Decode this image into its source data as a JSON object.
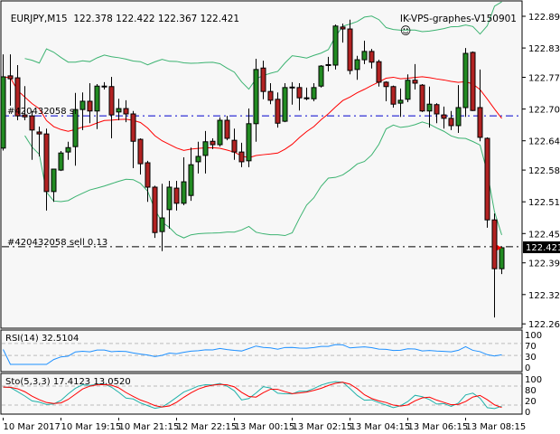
{
  "header": {
    "symbol": "EURJPY,M15",
    "ohlc": "122.378 122.422 122.367 122.421",
    "expert": "IK-VPS-graphes-V150901",
    "expert_icon": "smiley-face-icon"
  },
  "colors": {
    "background": "#f7f7f7",
    "bull": "#228b22",
    "bear": "#b22222",
    "bands": "#3cb371",
    "ma": "#ff0000",
    "rsi": "#1e90ff",
    "stoch_main": "#20b2aa",
    "stoch_signal": "#ff0000",
    "sl_line": "#0000cd",
    "order_line": "#000000"
  },
  "orders": {
    "sl_label": "#420432058 sl",
    "sl_price": 122.691,
    "sell_label": "#420432058 sell 0.13",
    "sell_price": 122.423
  },
  "rsi_panel": {
    "label": "RSI(14) 32.5104",
    "levels": [
      "100",
      "70",
      "30",
      "0"
    ]
  },
  "stoch_panel": {
    "label": "Sto(5,3,3) 17.4123 13.0520",
    "levels": [
      "100",
      "80",
      "20",
      "0"
    ]
  },
  "chart_data": {
    "type": "candlestick",
    "title": "EURJPY,M15",
    "price_ticks": [
      "122.895",
      "122.830",
      "122.770",
      "122.705",
      "122.640",
      "122.580",
      "122.515",
      "122.450",
      "122.390",
      "122.325",
      "122.265"
    ],
    "current_price": "122.421",
    "ylim": [
      122.265,
      122.895
    ],
    "time_labels": [
      "10 Mar 2017",
      "10 Mar 19:15",
      "10 Mar 21:15",
      "12 Mar 22:15",
      "13 Mar 00:15",
      "13 Mar 02:15",
      "13 Mar 04:15",
      "13 Mar 06:15",
      "13 Mar 08:15"
    ],
    "time_label_every_bars": 8,
    "grid": false,
    "ohlc": [
      [
        122.625,
        122.817,
        122.62,
        122.771
      ],
      [
        122.773,
        122.817,
        122.712,
        122.767
      ],
      [
        122.769,
        122.795,
        122.682,
        122.691
      ],
      [
        122.693,
        122.752,
        122.682,
        122.689
      ],
      [
        122.691,
        122.701,
        122.601,
        122.662
      ],
      [
        122.658,
        122.669,
        122.608,
        122.654
      ],
      [
        122.654,
        122.665,
        122.497,
        122.536
      ],
      [
        122.536,
        122.582,
        122.515,
        122.582
      ],
      [
        122.58,
        122.619,
        122.578,
        122.615
      ],
      [
        122.617,
        122.638,
        122.601,
        122.626
      ],
      [
        122.628,
        122.738,
        122.589,
        122.704
      ],
      [
        122.704,
        122.739,
        122.662,
        122.721
      ],
      [
        122.721,
        122.758,
        122.676,
        122.701
      ],
      [
        122.701,
        122.756,
        122.664,
        122.752
      ],
      [
        122.752,
        122.76,
        122.745,
        122.751
      ],
      [
        122.751,
        122.771,
        122.645,
        122.693
      ],
      [
        122.699,
        122.726,
        122.682,
        122.706
      ],
      [
        122.706,
        122.723,
        122.678,
        122.695
      ],
      [
        122.695,
        122.701,
        122.584,
        122.639
      ],
      [
        122.643,
        122.645,
        122.571,
        122.593
      ],
      [
        122.595,
        122.599,
        122.515,
        122.545
      ],
      [
        122.545,
        122.548,
        122.441,
        122.452
      ],
      [
        122.454,
        122.552,
        122.414,
        122.482
      ],
      [
        122.499,
        122.558,
        122.46,
        122.545
      ],
      [
        122.543,
        122.558,
        122.497,
        122.512
      ],
      [
        122.512,
        122.606,
        122.508,
        122.556
      ],
      [
        122.528,
        122.626,
        122.517,
        122.591
      ],
      [
        122.597,
        122.638,
        122.573,
        122.608
      ],
      [
        122.61,
        122.66,
        122.573,
        122.638
      ],
      [
        122.639,
        122.645,
        122.623,
        122.632
      ],
      [
        122.632,
        122.688,
        122.628,
        122.682
      ],
      [
        122.682,
        122.691,
        122.641,
        122.645
      ],
      [
        122.641,
        122.665,
        122.601,
        122.617
      ],
      [
        122.617,
        122.636,
        122.586,
        122.597
      ],
      [
        122.599,
        122.706,
        122.586,
        122.675
      ],
      [
        122.675,
        122.808,
        122.638,
        122.786
      ],
      [
        122.789,
        122.804,
        122.725,
        122.741
      ],
      [
        122.741,
        122.758,
        122.715,
        122.723
      ],
      [
        122.725,
        122.739,
        122.667,
        122.676
      ],
      [
        122.68,
        122.758,
        122.678,
        122.749
      ],
      [
        122.749,
        122.76,
        122.714,
        122.75
      ],
      [
        122.749,
        122.758,
        122.702,
        122.728
      ],
      [
        122.728,
        122.749,
        122.723,
        122.727
      ],
      [
        122.726,
        122.758,
        122.721,
        122.749
      ],
      [
        122.752,
        122.795,
        122.749,
        122.793
      ],
      [
        122.795,
        122.812,
        122.782,
        122.796
      ],
      [
        122.795,
        122.878,
        122.786,
        122.875
      ],
      [
        122.873,
        122.88,
        122.841,
        122.869
      ],
      [
        122.869,
        122.888,
        122.776,
        122.784
      ],
      [
        122.786,
        122.814,
        122.765,
        122.806
      ],
      [
        122.806,
        122.845,
        122.797,
        122.823
      ],
      [
        122.823,
        122.828,
        122.788,
        122.801
      ],
      [
        122.802,
        122.806,
        122.751,
        122.76
      ],
      [
        122.76,
        122.762,
        122.721,
        122.751
      ],
      [
        122.751,
        122.753,
        122.708,
        122.715
      ],
      [
        122.717,
        122.747,
        122.689,
        122.723
      ],
      [
        122.725,
        122.776,
        122.719,
        122.764
      ],
      [
        122.764,
        122.797,
        122.745,
        122.758
      ],
      [
        122.754,
        122.756,
        122.699,
        122.701
      ],
      [
        122.701,
        122.751,
        122.667,
        122.715
      ],
      [
        122.714,
        122.717,
        122.676,
        122.695
      ],
      [
        122.693,
        122.71,
        122.665,
        122.686
      ],
      [
        122.686,
        122.701,
        122.662,
        122.671
      ],
      [
        122.671,
        122.754,
        122.656,
        122.708
      ],
      [
        122.708,
        122.83,
        122.689,
        122.819
      ],
      [
        122.821,
        122.823,
        122.701,
        122.702
      ],
      [
        122.708,
        122.786,
        122.639,
        122.647
      ],
      [
        122.645,
        122.647,
        122.462,
        122.478
      ],
      [
        122.478,
        122.491,
        122.278,
        122.378
      ],
      [
        122.378,
        122.422,
        122.367,
        122.421
      ]
    ]
  }
}
